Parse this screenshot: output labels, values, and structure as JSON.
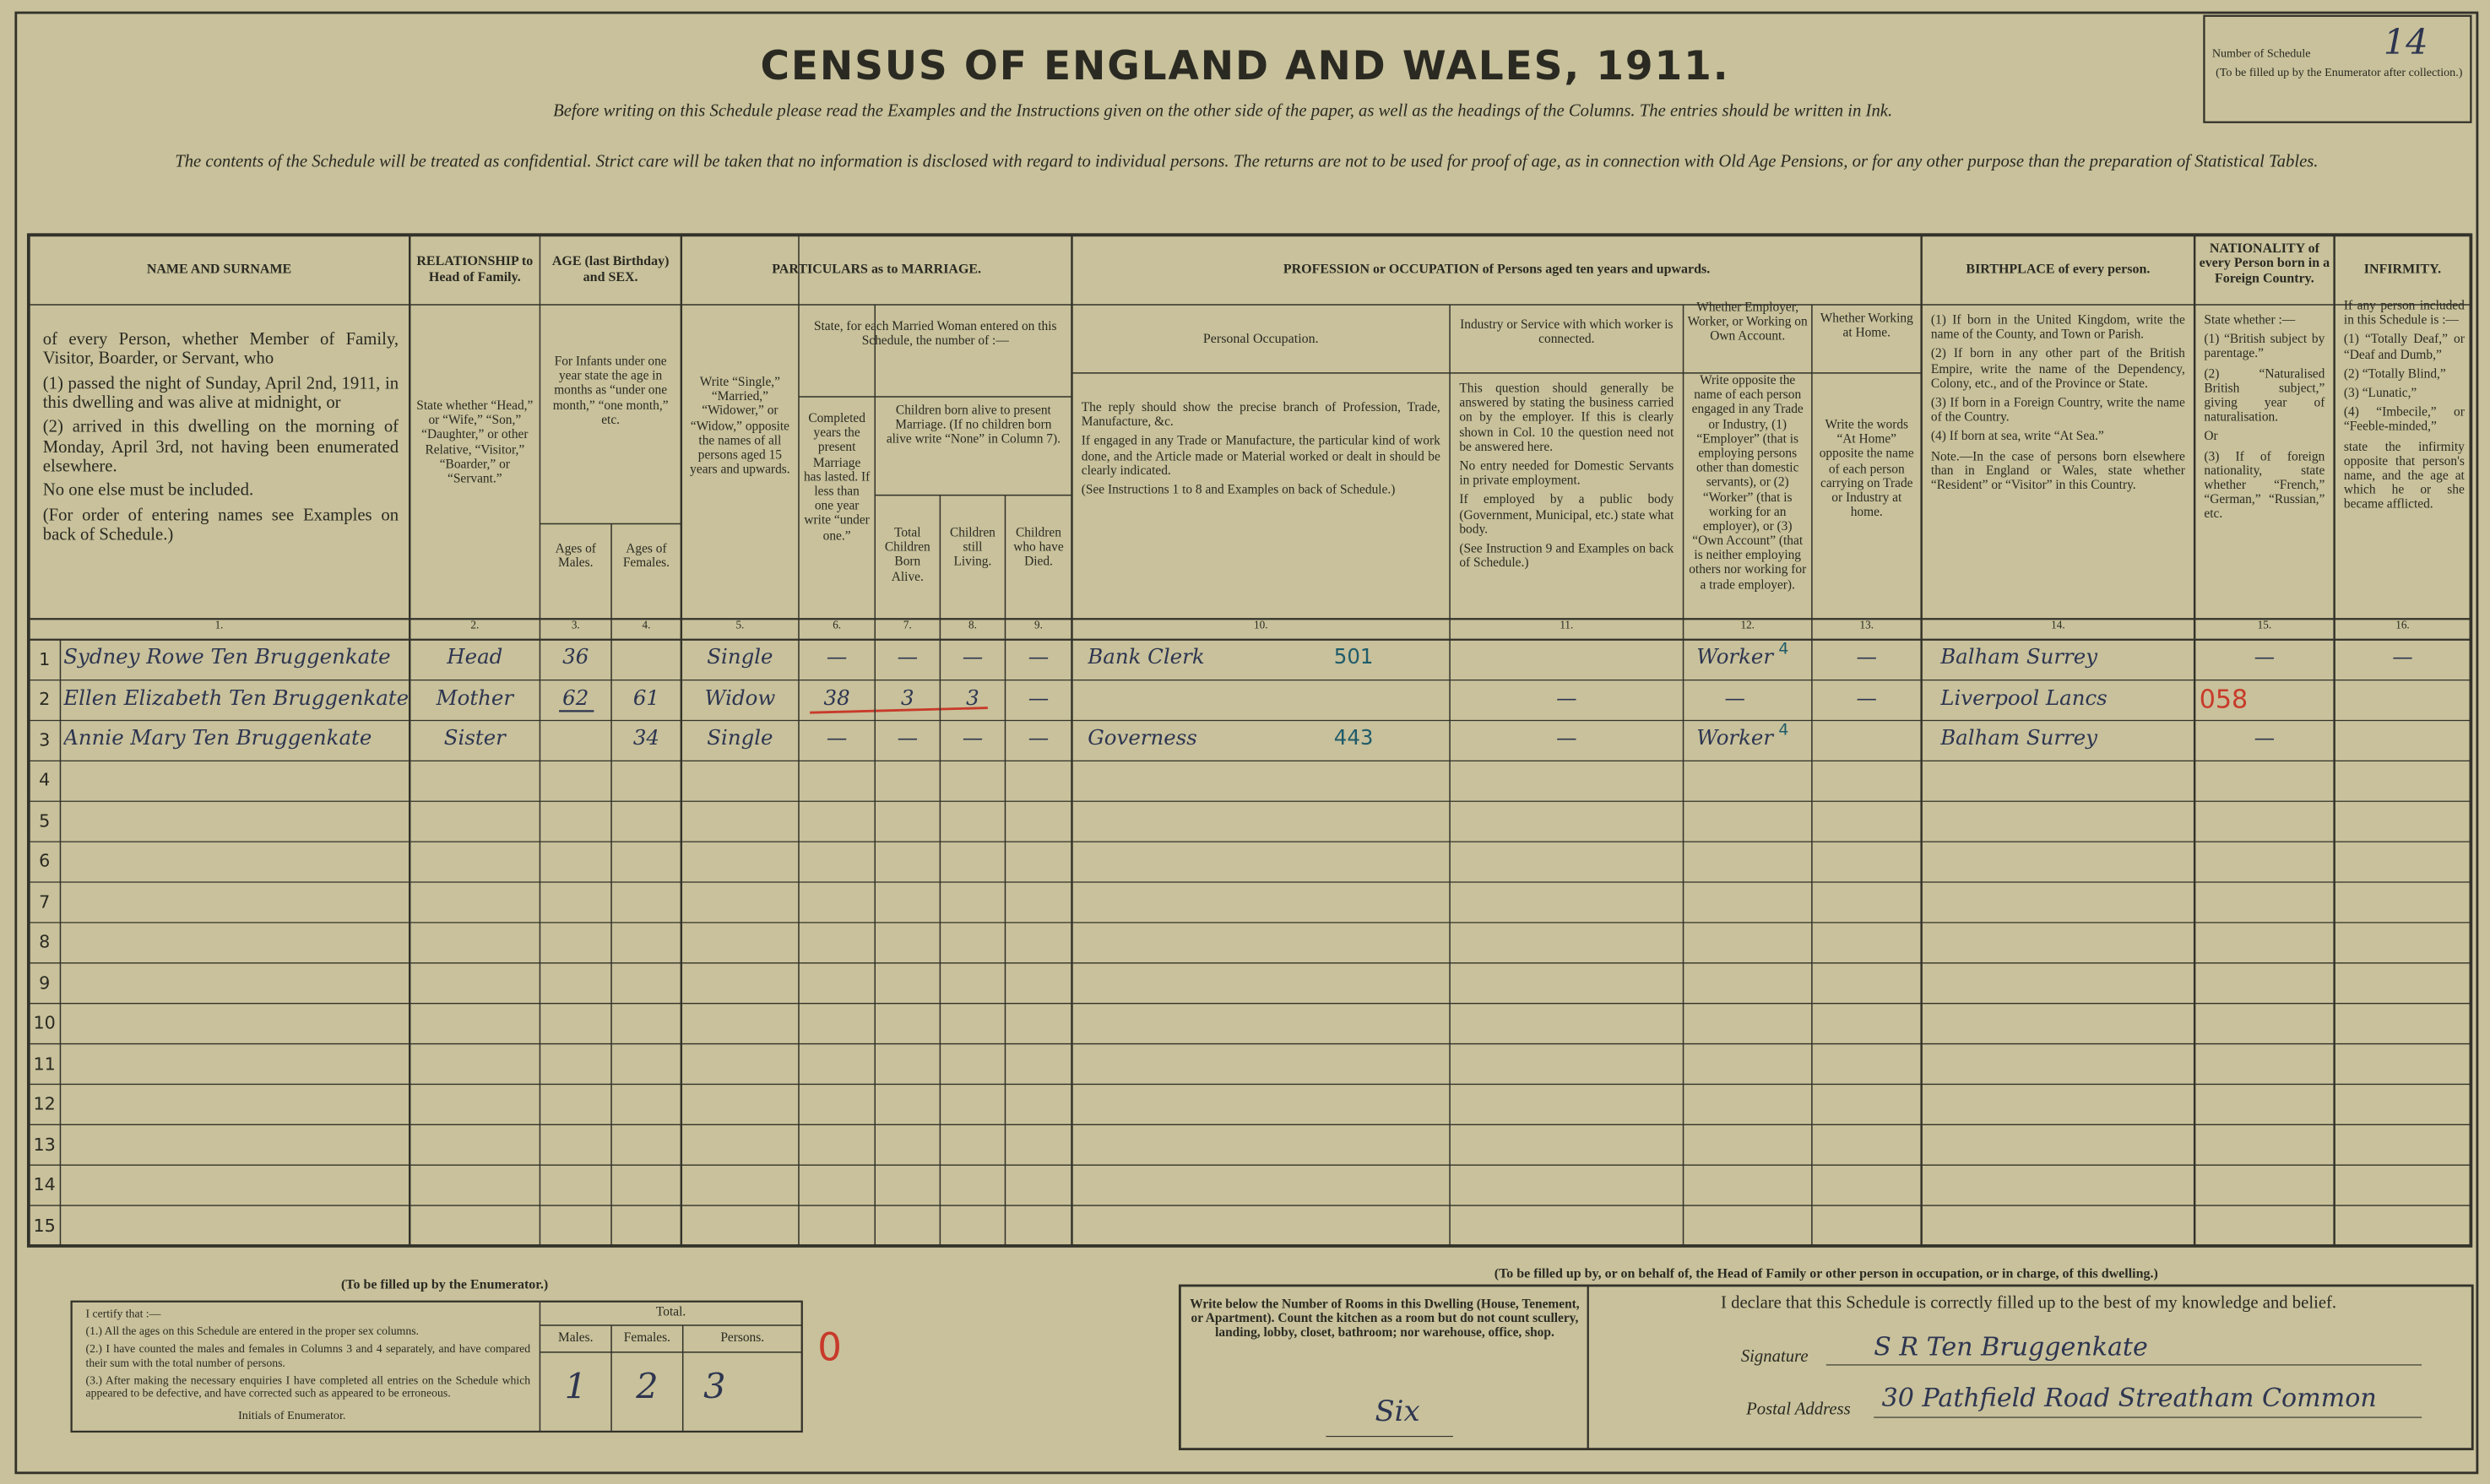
{
  "header": {
    "title": "CENSUS OF ENGLAND AND WALES, 1911.",
    "instruction": "Before writing on this Schedule please read the Examples and the Instructions given on the other side of the paper, as well as the headings of the Columns. The entries should be written in Ink.",
    "confidential_note": "The contents of the Schedule will be treated as confidential. Strict care will be taken that no information is disclosed with regard to individual persons. The returns are not to be used for proof of age, as in connection with Old Age Pensions, or for any other purpose than the preparation of Statistical Tables.",
    "schedule_number_label": "Number of Schedule",
    "schedule_number": "14",
    "schedule_note": "(To be filled up by the Enumerator after collection.)"
  },
  "table": {
    "headings": {
      "name": "NAME AND SURNAME",
      "relationship": "RELATIONSHIP to Head of Family.",
      "age": "AGE (last Birthday) and SEX.",
      "marriage": "PARTICULARS as to MARRIAGE.",
      "occupation": "PROFESSION or OCCUPATION of Persons aged ten years and upwards.",
      "birthplace": "BIRTHPLACE of every person.",
      "nationality": "NATIONALITY of every Person born in a Foreign Country.",
      "infirmity": "INFIRMITY."
    },
    "subheadings": {
      "name": [
        "of every Person, whether Member of Family, Visitor, Boarder, or Servant, who",
        "(1) passed the night of Sunday, April 2nd, 1911, in this dwelling and was alive at midnight, or",
        "(2) arrived in this dwelling on the morning of Monday, April 3rd, not having been enumerated elsewhere.",
        "No one else must be included.",
        "(For order of entering names see Examples on back of Schedule.)"
      ],
      "relationship": "State whether “Head,” or “Wife,” “Son,” “Daughter,” or other Relative, “Visitor,” “Boarder,” or “Servant.”",
      "infants": "For Infants under one year state the age in months as “under one month,” “one month,” etc.",
      "males": "Ages of Males.",
      "females": "Ages of Females.",
      "condition": "Write “Single,” “Married,” “Widower,” or “Widow,” opposite the names of all persons aged 15 years and upwards.",
      "married_woman": "State, for each Married Woman entered on this Schedule, the number of :—",
      "years_married": "Completed years the present Marriage has lasted. If less than one year write “under one.”",
      "children": "Children born alive to present Marriage. (If no children born alive write “None” in Column 7).",
      "children_born": "Total Children Born Alive.",
      "children_living": "Children still Living.",
      "children_died": "Children who have Died.",
      "personal_occupation": "Personal Occupation.",
      "occupation_body": [
        "The reply should show the precise branch of Profession, Trade, Manufacture, &c.",
        "If engaged in any Trade or Manufacture, the particular kind of work done, and the Article made or Material worked or dealt in should be clearly indicated.",
        "(See Instructions 1 to 8 and Examples on back of Schedule.)"
      ],
      "industry": "Industry or Service with which worker is connected.",
      "industry_body": [
        "This question should generally be answered by stating the business carried on by the employer. If this is clearly shown in Col. 10 the question need not be answered here.",
        "No entry needed for Domestic Servants in private employment.",
        "If employed by a public body (Government, Municipal, etc.) state what body.",
        "(See Instruction 9 and Examples on back of Schedule.)"
      ],
      "employment": "Whether Employer, Worker, or Working on Own Account.",
      "employment_body": "Write opposite the name of each person engaged in any Trade or Industry, (1) “Employer” (that is employing persons other than domestic servants), or (2) “Worker” (that is working for an employer), or (3) “Own Account” (that is neither employing others nor working for a trade employer).",
      "at_home": "Whether Working at Home.",
      "at_home_body": "Write the words “At Home” opposite the name of each person carrying on Trade or Industry at home.",
      "birthplace_body": [
        "(1) If born in the United Kingdom, write the name of the County, and Town or Parish.",
        "(2) If born in any other part of the British Empire, write the name of the Dependency, Colony, etc., and of the Province or State.",
        "(3) If born in a Foreign Country, write the name of the Country.",
        "(4) If born at sea, write “At Sea.”",
        "Note.—In the case of persons born elsewhere than in England or Wales, state whether “Resident” or “Visitor” in this Country."
      ],
      "nationality_body": [
        "State whether :—",
        "(1) “British subject by parentage.”",
        "(2) “Naturalised British subject,” giving year of naturalisation.",
        "Or",
        "(3) If of foreign nationality, state whether “French,” “German,” “Russian,” etc."
      ],
      "infirmity_body": [
        "If any person included in this Schedule is :—",
        "(1) “Totally Deaf,” or “Deaf and Dumb,”",
        "(2) “Totally Blind,”",
        "(3) “Lunatic,”",
        "(4) “Imbecile,” or “Feeble-minded,”",
        "state the infirmity opposite that person's name, and the age at which he or she became afflicted."
      ]
    },
    "column_numbers": [
      "1.",
      "2.",
      "3.",
      "4.",
      "5.",
      "6.",
      "7.",
      "8.",
      "9.",
      "10.",
      "11.",
      "12.",
      "13.",
      "14.",
      "15.",
      "16."
    ],
    "rows": [
      {
        "line": "1",
        "name": "Sydney Rowe Ten Bruggenkate",
        "relationship": "Head",
        "age_male": "36",
        "condition": "Single",
        "years_married": "—",
        "children_born": "—",
        "children_living": "—",
        "children_died": "—",
        "occupation": "Bank Clerk",
        "occupation_code": "501",
        "employment": "Worker",
        "employment_code": "4",
        "at_home": "—",
        "birthplace": "Balham Surrey",
        "nationality": "—",
        "infirmity": "—"
      },
      {
        "line": "2",
        "name": "Ellen Elizabeth Ten Bruggenkate",
        "relationship": "Mother",
        "age_male": "62",
        "age_female": "61",
        "condition": "Widow",
        "years_married": "38",
        "children_born": "3",
        "children_living": "3",
        "children_died": "—",
        "industry": "—",
        "employment": "—",
        "at_home": "—",
        "birthplace": "Liverpool Lancs",
        "birthplace_code": "058"
      },
      {
        "line": "3",
        "name": "Annie Mary Ten Bruggenkate",
        "relationship": "Sister",
        "age_female": "34",
        "condition": "Single",
        "years_married": "—",
        "children_born": "—",
        "children_living": "—",
        "children_died": "—",
        "occupation": "Governess",
        "occupation_code": "443",
        "industry": "—",
        "employment": "Worker",
        "employment_code": "4",
        "birthplace": "Balham Surrey",
        "nationality": "—"
      },
      {
        "line": "4"
      },
      {
        "line": "5"
      },
      {
        "line": "6"
      },
      {
        "line": "7"
      },
      {
        "line": "8"
      },
      {
        "line": "9"
      },
      {
        "line": "10"
      },
      {
        "line": "11"
      },
      {
        "line": "12"
      },
      {
        "line": "13"
      },
      {
        "line": "14"
      },
      {
        "line": "15"
      }
    ]
  },
  "enumerator": {
    "title": "(To be filled up by the Enumerator.)",
    "certificate": [
      "I certify that :—",
      "(1.) All the ages on this Schedule are entered in the proper sex columns.",
      "(2.) I have counted the males and females in Columns 3 and 4 separately, and have compared their sum with the total number of persons.",
      "(3.) After making the necessary enquiries I have completed all entries on the Schedule which appeared to be defective, and have corrected such as appeared to be erroneous."
    ],
    "initials_label": "Initials of Enumerator.",
    "total_label": "Total.",
    "males_label": "Males.",
    "females_label": "Females.",
    "persons_label": "Persons.",
    "males": "1",
    "females": "2",
    "persons": "3",
    "mark": "0"
  },
  "householder": {
    "title": "(To be filled up by, or on behalf of, the Head of Family or other person in occupation, or in charge, of this dwelling.)",
    "rooms_instruction": "Write below the Number of Rooms in this Dwelling (House, Tenement, or Apartment). Count the kitchen as a room but do not count scullery, landing, lobby, closet, bathroom; nor warehouse, office, shop.",
    "rooms": "Six",
    "declaration": "I declare that this Schedule is correctly filled up to the best of my knowledge and belief.",
    "signature_label": "Signature",
    "signature": "S R Ten Bruggenkate",
    "address_label": "Postal Address",
    "address": "30 Pathfield Road Streatham Common"
  }
}
